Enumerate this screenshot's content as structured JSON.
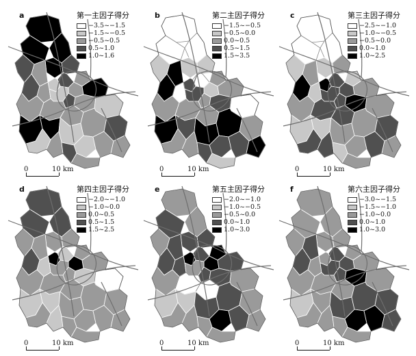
{
  "panels": [
    {
      "letter": "a",
      "legend_title": "第一主因子得分",
      "legend": [
        "−3.5~−1.5",
        "−1.5~−0.5",
        "−0.5~0.5",
        "0.5~1.0",
        "1.0~1.6"
      ],
      "scale": {
        "zero": "0",
        "distance": "10 km"
      },
      "fill_classes": [
        4,
        4,
        4,
        3,
        4,
        3,
        2,
        3,
        1,
        2,
        2,
        4,
        3,
        2,
        1,
        3,
        2,
        1,
        2,
        2,
        2,
        4,
        4,
        1,
        2,
        3,
        1,
        2,
        2,
        2,
        3,
        1,
        2
      ]
    },
    {
      "letter": "b",
      "legend_title": "第二主因子得分",
      "legend": [
        "−1.5~−0.5",
        "−0.5~0.0",
        "0.0~0.5",
        "0.5~1.5",
        "1.5~3.5"
      ],
      "scale": {
        "zero": "0",
        "distance": "10 km"
      },
      "fill_classes": [
        0,
        0,
        0,
        1,
        1,
        1,
        2,
        0,
        3,
        4,
        1,
        2,
        4,
        0,
        3,
        2,
        3,
        0,
        2,
        2,
        2,
        4,
        3,
        4,
        4,
        2,
        3,
        3,
        4,
        2,
        3,
        2,
        1
      ]
    },
    {
      "letter": "c",
      "legend_title": "第三主因子得分",
      "legend": [
        "−2.5~−1.0",
        "−1.0~−0.5",
        "−0.5~0.0",
        "0.0~1.0",
        "1.0~2.5"
      ],
      "scale": {
        "zero": "0",
        "distance": "10 km"
      },
      "fill_classes": [
        0,
        0,
        0,
        1,
        1,
        2,
        1,
        3,
        4,
        2,
        3,
        2,
        4,
        1,
        3,
        3,
        4,
        2,
        2,
        3,
        3,
        1,
        1,
        2,
        2,
        3,
        2,
        3,
        2,
        3,
        1,
        3,
        2
      ]
    },
    {
      "letter": "d",
      "legend_title": "第四主因子得分",
      "legend": [
        "−2.0~−1.0",
        "−1.0~0.0",
        "0.0~0.5",
        "0.5~1.5",
        "1.5~2.5"
      ],
      "scale": {
        "zero": "0",
        "distance": "10 km"
      },
      "fill_classes": [
        3,
        3,
        3,
        2,
        2,
        2,
        2,
        1,
        4,
        2,
        4,
        2,
        3,
        1,
        2,
        2,
        1,
        0,
        2,
        2,
        2,
        1,
        1,
        2,
        2,
        2,
        2,
        2,
        2,
        1,
        2,
        2,
        2
      ]
    },
    {
      "letter": "e",
      "legend_title": "第五主因子得分",
      "legend": [
        "−2.0~−1.0",
        "−1.0~−0.5",
        "−0.5~0.0",
        "0.0~1.0",
        "1.0~3.0"
      ],
      "scale": {
        "zero": "0",
        "distance": "10 km"
      },
      "fill_classes": [
        2,
        2,
        3,
        2,
        3,
        3,
        4,
        3,
        4,
        3,
        4,
        3,
        3,
        3,
        2,
        3,
        3,
        2,
        2,
        0,
        0,
        1,
        1,
        3,
        3,
        2,
        4,
        3,
        2,
        2,
        2,
        2,
        2
      ]
    },
    {
      "letter": "f",
      "legend_title": "第六主因子得分",
      "legend": [
        "−3.0~−1.5",
        "−1.5~−1.0",
        "−1.0~0.0",
        "0.0~1.0",
        "1.0~3.0"
      ],
      "scale": {
        "zero": "0",
        "distance": "10 km"
      },
      "fill_classes": [
        2,
        2,
        2,
        2,
        2,
        2,
        2,
        3,
        2,
        3,
        3,
        2,
        3,
        2,
        3,
        3,
        4,
        2,
        2,
        2,
        2,
        1,
        2,
        3,
        3,
        3,
        4,
        4,
        3,
        2,
        2,
        2,
        2
      ]
    }
  ],
  "colors": {
    "class_fills": [
      "#ffffff",
      "#c8c8c8",
      "#9a9a9a",
      "#505050",
      "#000000"
    ],
    "boundary": "#ffffff",
    "road": "#6e6e6e",
    "outline": "#555555"
  }
}
